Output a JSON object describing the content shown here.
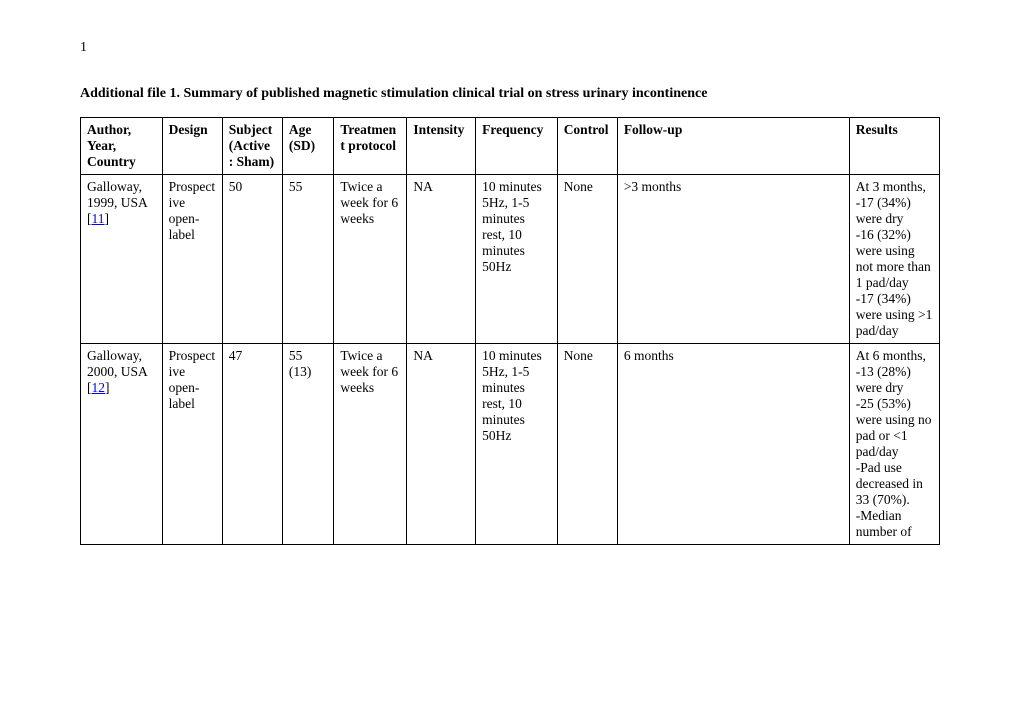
{
  "page_number": "1",
  "title": "Additional file 1. Summary of published magnetic stimulation clinical trial on stress urinary incontinence",
  "headers": {
    "author": "Author, Year, Country",
    "design": "Design",
    "subject": "Subject (Active : Sham)",
    "age": "Age (SD)",
    "treat": "Treatment protocol",
    "intens": "Intensity",
    "freq": "Frequency",
    "control": "Control",
    "follow": "Follow-up",
    "results": "Results"
  },
  "rows": [
    {
      "author_pre": "Galloway, 1999, USA [",
      "ref": "11",
      "author_post": "]",
      "design": "Prospective open-label",
      "subject": "50",
      "age": "55",
      "treat": "Twice a week for 6 weeks",
      "intens": "NA",
      "freq": "10 minutes 5Hz, 1-5 minutes rest, 10 minutes 50Hz",
      "control": "None",
      "follow": ">3 months",
      "results": "At 3 months,\n-17 (34%) were dry\n-16 (32%) were using not more than 1 pad/day\n-17 (34%) were using >1 pad/day"
    },
    {
      "author_pre": "Galloway, 2000, USA [",
      "ref": "12",
      "author_post": "]",
      "design": "Prospective open-label",
      "subject": "47",
      "age": "55 (13)",
      "treat": "Twice a week for 6 weeks",
      "intens": "NA",
      "freq": "10 minutes 5Hz, 1-5 minutes rest, 10 minutes 50Hz",
      "control": "None",
      "follow": "6 months",
      "results": "At 6 months,\n-13 (28%) were dry\n-25 (53%) were using no pad or <1 pad/day\n-Pad use decreased in 33 (70%).\n-Median number of"
    }
  ]
}
